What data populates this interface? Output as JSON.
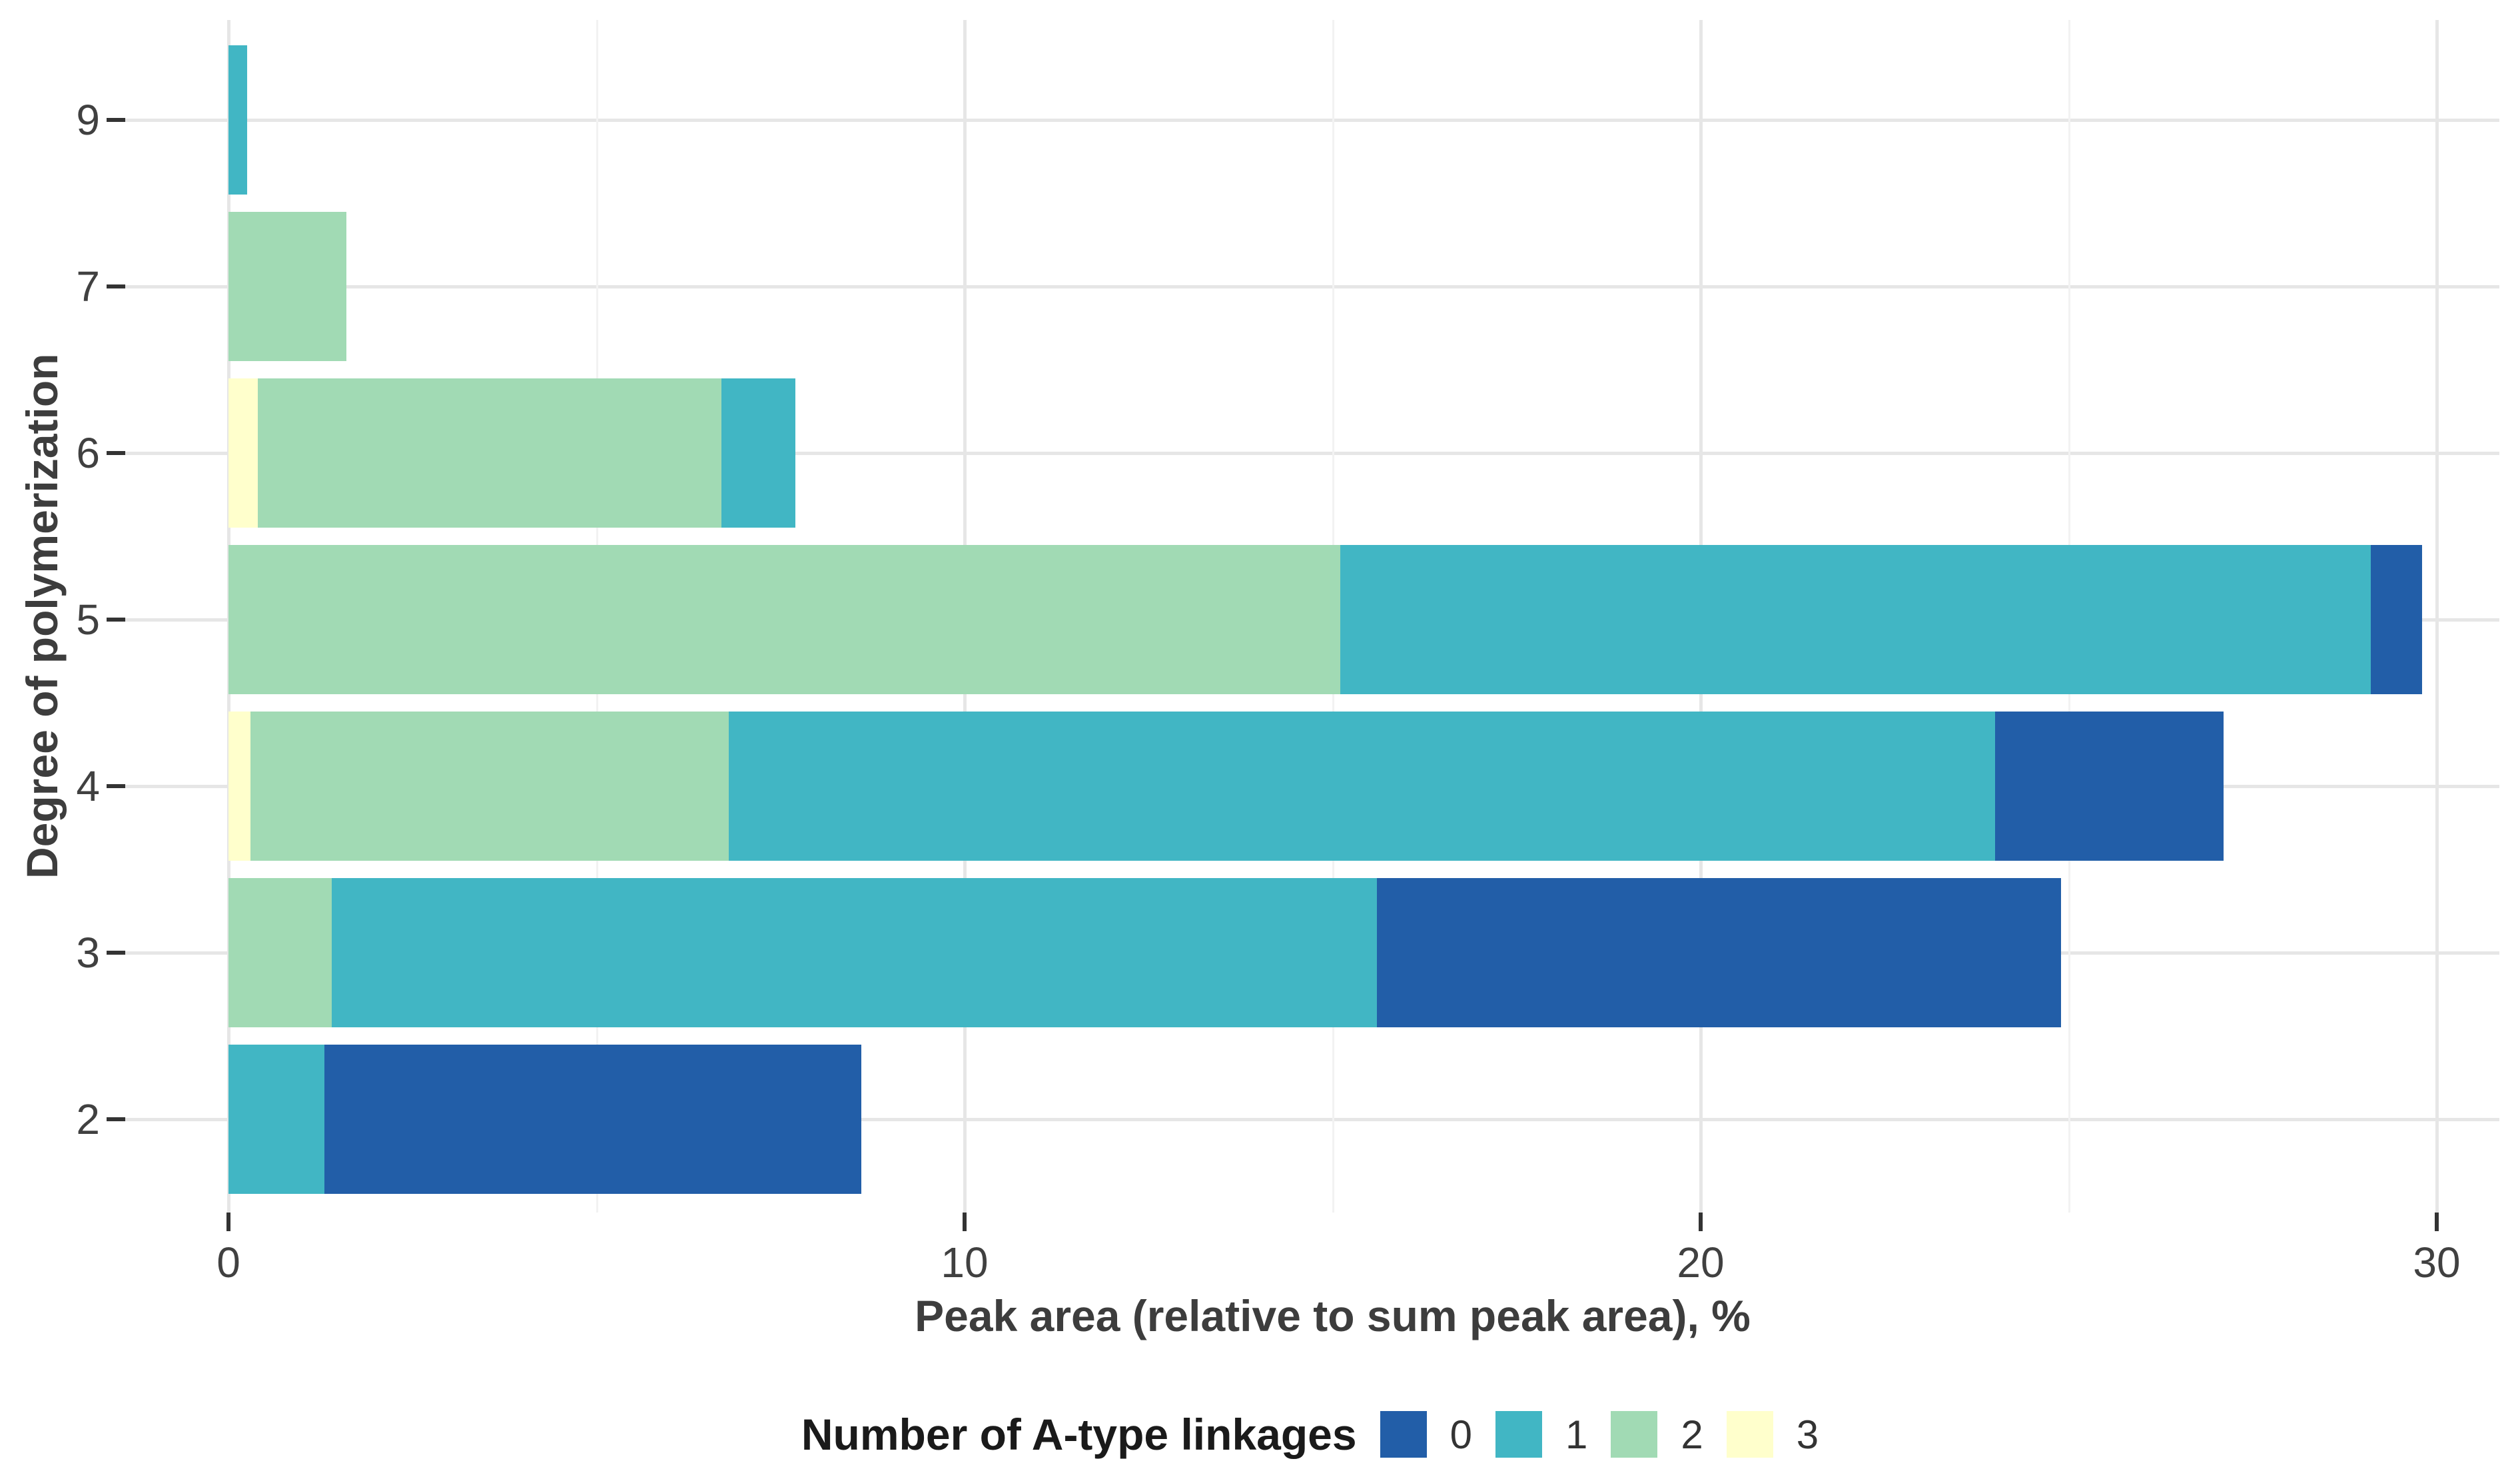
{
  "chart_data": {
    "type": "bar",
    "orientation": "horizontal",
    "stacked": true,
    "title": "",
    "xlabel": "Peak area (relative to sum peak area), %",
    "ylabel": "Degree of polymerization",
    "categories": [
      "9",
      "7",
      "6",
      "5",
      "4",
      "3",
      "2"
    ],
    "series": [
      {
        "name": "0",
        "color": "#225ea8",
        "values": [
          0,
          0,
          0,
          0.7,
          3.1,
          9.3,
          7.3
        ]
      },
      {
        "name": "1",
        "color": "#41b6c4",
        "values": [
          0.25,
          0,
          1.0,
          14.0,
          17.2,
          14.2,
          1.3
        ]
      },
      {
        "name": "2",
        "color": "#a1dab4",
        "values": [
          0,
          1.6,
          6.3,
          15.1,
          6.5,
          1.4,
          0
        ]
      },
      {
        "name": "3",
        "color": "#ffffcc",
        "values": [
          0,
          0,
          0.4,
          0,
          0.3,
          0,
          0
        ]
      }
    ],
    "stack_order": [
      "3",
      "2",
      "1",
      "0"
    ],
    "totals_by_category": [
      0.25,
      1.6,
      7.7,
      29.8,
      27.1,
      24.9,
      8.6
    ],
    "xlim": [
      0,
      30.9
    ],
    "x_ticks": [
      "0",
      "10",
      "20",
      "30"
    ],
    "x_tick_values": [
      0,
      10,
      20,
      30
    ],
    "x_minor_values": [
      5,
      15,
      25
    ],
    "grid": "major-and-minor, light gray on white",
    "legend": {
      "position": "bottom",
      "title": "Number of A-type linkages",
      "entries": [
        "0",
        "1",
        "2",
        "3"
      ]
    },
    "colors": {
      "0": "#225ea8",
      "1": "#41b6c4",
      "2": "#a1dab4",
      "3": "#ffffcc",
      "gridline_major": "#e6e6e6",
      "gridline_minor": "#f2f2f2",
      "tick_mark": "#333333",
      "tick_text": "#404040",
      "axis_title_text": "#3d3d3d"
    }
  }
}
